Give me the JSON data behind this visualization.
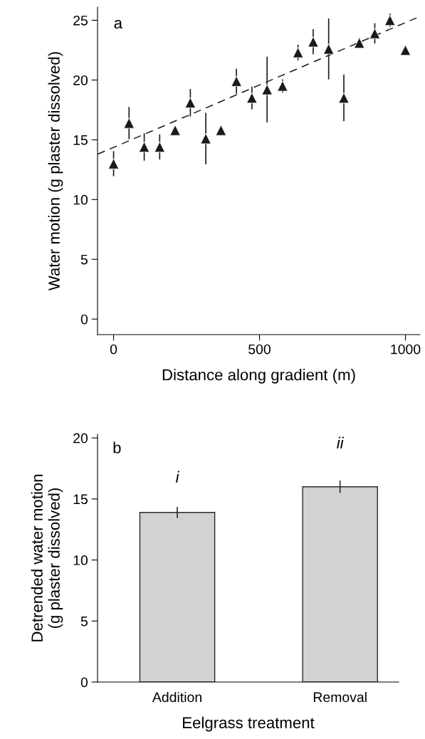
{
  "chart_data": [
    {
      "type": "scatter",
      "xlabel": "Distance along gradient (m)",
      "ylabel": "Water motion (g plaster dissolved)",
      "annotations": [
        "a"
      ],
      "x": [
        0,
        53,
        105,
        158,
        211,
        263,
        316,
        368,
        421,
        474,
        526,
        579,
        632,
        684,
        737,
        789,
        842,
        895,
        947,
        1000
      ],
      "series": [
        {
          "type": "scatter",
          "color": "#1a1a1a",
          "marker": "triangle",
          "values": [
            13.0,
            16.4,
            14.4,
            14.4,
            15.8,
            18.1,
            15.1,
            15.8,
            19.9,
            18.5,
            19.2,
            19.5,
            22.3,
            23.2,
            22.6,
            18.5,
            23.1,
            23.9,
            25.0,
            22.5
          ],
          "errors": [
            1.0,
            1.3,
            1.1,
            1.0,
            0.2,
            1.1,
            2.1,
            0.3,
            1.0,
            0.9,
            2.7,
            0.5,
            0.6,
            1.0,
            2.5,
            1.9,
            0.4,
            0.8,
            0.5,
            null
          ]
        },
        {
          "type": "line",
          "color": "#1a1a1a",
          "line_style": "dashed",
          "x": [
            -54,
            1038
          ],
          "values": [
            13.8,
            25.2
          ]
        }
      ],
      "xlim": [
        -55,
        1050
      ],
      "ylim": [
        -1.3,
        26.1
      ],
      "xticks": [
        0,
        500,
        1000
      ],
      "yticks": [
        0,
        5,
        10,
        15,
        20,
        25
      ],
      "grid": false,
      "legend": false
    },
    {
      "type": "bar",
      "xlabel": "Eelgrass treatment",
      "ylabel": "Detrended water motion\n(g plaster dissolved)",
      "annotations": [
        "b",
        "i",
        "ii"
      ],
      "categories": [
        "Addition",
        "Removal"
      ],
      "values": [
        13.9,
        16.0
      ],
      "errors": [
        0.4,
        0.45
      ],
      "color": "#d1d2d4",
      "ylim": [
        0,
        20.3
      ],
      "yticks": [
        0,
        5,
        10,
        15,
        20
      ],
      "grid": false,
      "legend": false
    }
  ]
}
